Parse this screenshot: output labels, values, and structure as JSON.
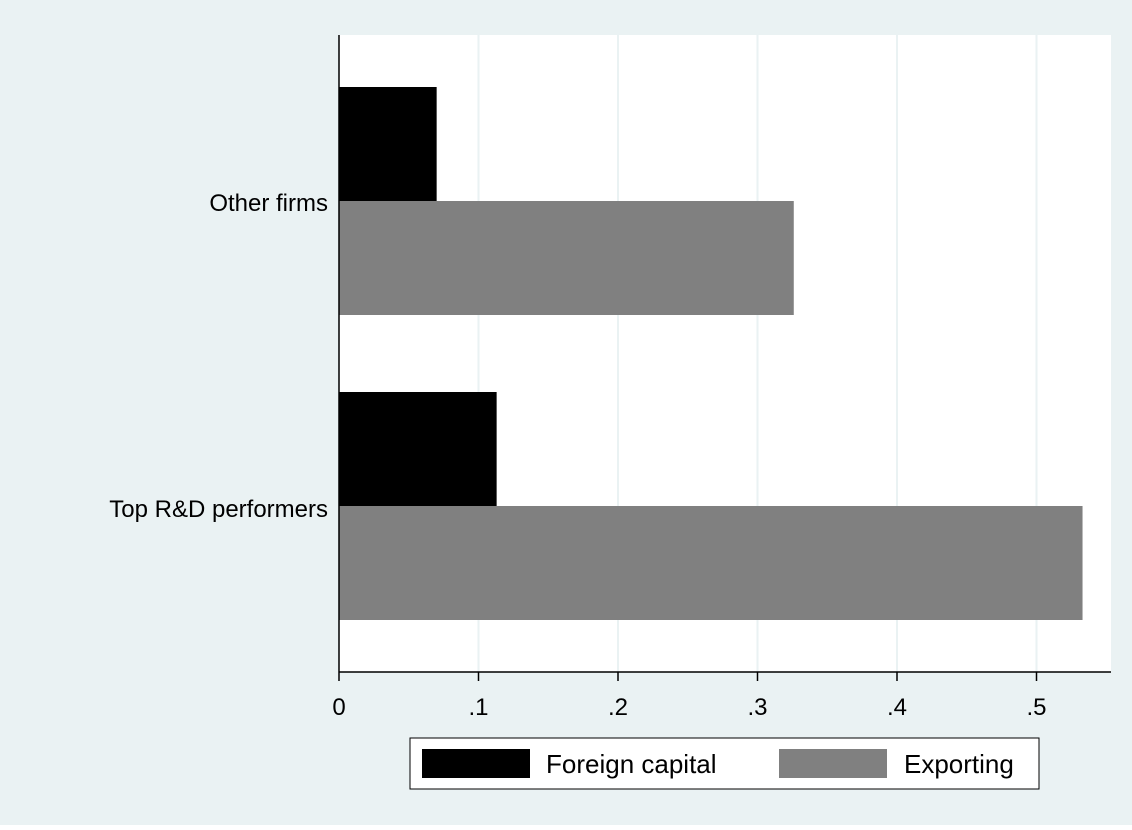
{
  "chart_data": {
    "type": "bar",
    "orientation": "horizontal",
    "categories": [
      "Other firms",
      "Top R&D performers"
    ],
    "series": [
      {
        "name": "Foreign capital",
        "color": "#000000",
        "values": [
          0.07,
          0.113
        ]
      },
      {
        "name": "Exporting",
        "color": "#808080",
        "values": [
          0.326,
          0.533
        ]
      }
    ],
    "xlim": [
      0,
      0.55
    ],
    "xticks": [
      {
        "value": 0,
        "label": "0"
      },
      {
        "value": 0.1,
        "label": ".1"
      },
      {
        "value": 0.2,
        "label": ".2"
      },
      {
        "value": 0.3,
        "label": ".3"
      },
      {
        "value": 0.4,
        "label": ".4"
      },
      {
        "value": 0.5,
        "label": ".5"
      }
    ],
    "title": "",
    "xlabel": "",
    "ylabel": "",
    "grid": "vertical",
    "legend": {
      "position": "bottom",
      "entries": [
        "Foreign capital",
        "Exporting"
      ]
    },
    "colors": {
      "background": "#eaf2f3",
      "plot_area": "#ffffff",
      "grid": "#eaf2f3"
    }
  }
}
